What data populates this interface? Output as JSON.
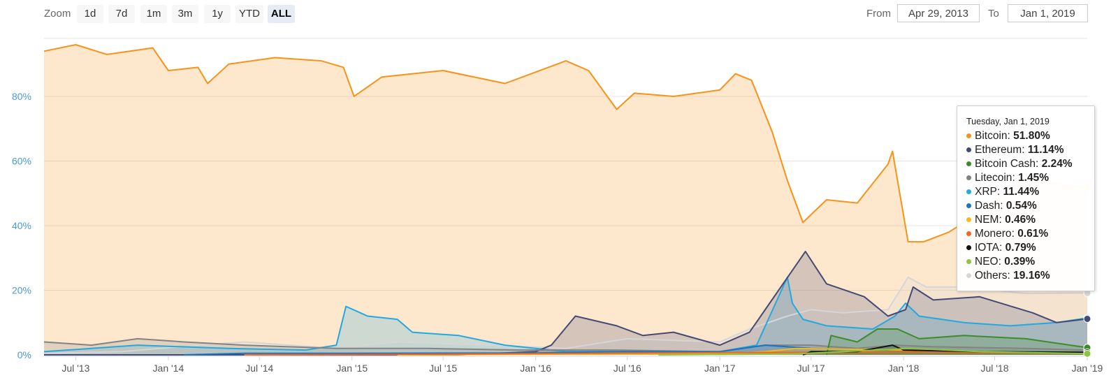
{
  "toolbar": {
    "zoom_label": "Zoom",
    "buttons": [
      {
        "label": "1d",
        "active": false
      },
      {
        "label": "7d",
        "active": false
      },
      {
        "label": "1m",
        "active": false
      },
      {
        "label": "3m",
        "active": false
      },
      {
        "label": "1y",
        "active": false
      },
      {
        "label": "YTD",
        "active": false
      },
      {
        "label": "ALL",
        "active": true
      }
    ],
    "from_label": "From",
    "from_value": "Apr 29, 2013",
    "to_label": "To",
    "to_value": "Jan 1, 2019"
  },
  "tooltip": {
    "date": "Tuesday, Jan 1, 2019",
    "rows": [
      {
        "name": "Bitcoin",
        "value": "51.80%",
        "color": "#f7931a"
      },
      {
        "name": "Ethereum",
        "value": "11.14%",
        "color": "#454a75"
      },
      {
        "name": "Bitcoin Cash",
        "value": "2.24%",
        "color": "#3c8c2a"
      },
      {
        "name": "Litecoin",
        "value": "1.45%",
        "color": "#838383"
      },
      {
        "name": "XRP",
        "value": "11.44%",
        "color": "#23a8e0"
      },
      {
        "name": "Dash",
        "value": "0.54%",
        "color": "#1c75bc"
      },
      {
        "name": "NEM",
        "value": "0.46%",
        "color": "#f5b921"
      },
      {
        "name": "Monero",
        "value": "0.61%",
        "color": "#f26822"
      },
      {
        "name": "IOTA",
        "value": "0.79%",
        "color": "#111111"
      },
      {
        "name": "NEO",
        "value": "0.39%",
        "color": "#8cc63f"
      },
      {
        "name": "Others",
        "value": "19.16%",
        "color": "#d6d6d6"
      }
    ]
  },
  "chart_data": {
    "type": "area",
    "xlabel": "",
    "ylabel": "",
    "x_range": [
      "2013-04-29",
      "2019-01-01"
    ],
    "ylim": [
      0,
      100
    ],
    "y_ticks": [
      0,
      20,
      40,
      60,
      80
    ],
    "y_tick_labels": [
      "0%",
      "20%",
      "40%",
      "60%",
      "80%"
    ],
    "x_ticks": [
      {
        "date": "2013-07-01",
        "label": "Jul '13"
      },
      {
        "date": "2014-01-01",
        "label": "Jan '14"
      },
      {
        "date": "2014-07-01",
        "label": "Jul '14"
      },
      {
        "date": "2015-01-01",
        "label": "Jan '15"
      },
      {
        "date": "2015-07-01",
        "label": "Jul '15"
      },
      {
        "date": "2016-01-01",
        "label": "Jan '16"
      },
      {
        "date": "2016-07-01",
        "label": "Jul '16"
      },
      {
        "date": "2017-01-01",
        "label": "Jan '17"
      },
      {
        "date": "2017-07-01",
        "label": "Jul '17"
      },
      {
        "date": "2018-01-01",
        "label": "Jan '18"
      },
      {
        "date": "2018-07-01",
        "label": "Jul '18"
      },
      {
        "date": "2019-01-01",
        "label": "Jan '19"
      }
    ],
    "grid": true,
    "legend": "none",
    "series": [
      {
        "name": "Others",
        "color": "#d6d6d6",
        "x": [
          "2013-04-29",
          "2013-10-01",
          "2014-03-01",
          "2014-06-01",
          "2014-12-01",
          "2015-04-01",
          "2015-10-01",
          "2016-03-01",
          "2016-07-01",
          "2017-01-01",
          "2017-03-01",
          "2017-05-15",
          "2017-07-01",
          "2017-09-01",
          "2017-12-01",
          "2018-01-10",
          "2018-02-15",
          "2018-05-01",
          "2018-09-01",
          "2019-01-01"
        ],
        "y": [
          0.5,
          1,
          3,
          4,
          2,
          4,
          3,
          2,
          5,
          4,
          8,
          12,
          14,
          13,
          14,
          24,
          21,
          21,
          19,
          19.16
        ]
      },
      {
        "name": "XRP",
        "color": "#23a8e0",
        "x": [
          "2013-04-29",
          "2013-08-01",
          "2013-11-01",
          "2014-05-01",
          "2014-10-01",
          "2014-12-01",
          "2014-12-20",
          "2015-02-01",
          "2015-04-01",
          "2015-05-01",
          "2015-08-01",
          "2015-11-01",
          "2016-03-01",
          "2016-08-01",
          "2017-01-01",
          "2017-03-15",
          "2017-05-15",
          "2017-05-25",
          "2017-06-15",
          "2017-08-01",
          "2017-11-01",
          "2017-12-15",
          "2018-01-05",
          "2018-02-01",
          "2018-05-01",
          "2018-08-01",
          "2018-11-01",
          "2019-01-01"
        ],
        "y": [
          1,
          2,
          3,
          2,
          1.5,
          3,
          15,
          12,
          11,
          7,
          6,
          3,
          1,
          1,
          1,
          3,
          24,
          16,
          11,
          9,
          8,
          12,
          16,
          12,
          10,
          9,
          10,
          11.44
        ]
      },
      {
        "name": "Ethereum",
        "color": "#454a75",
        "x": [
          "2013-04-29",
          "2015-08-01",
          "2016-01-01",
          "2016-02-01",
          "2016-03-20",
          "2016-06-10",
          "2016-08-01",
          "2016-10-01",
          "2017-01-01",
          "2017-03-01",
          "2017-04-10",
          "2017-06-20",
          "2017-08-01",
          "2017-10-15",
          "2017-12-01",
          "2018-01-05",
          "2018-01-20",
          "2018-03-01",
          "2018-06-01",
          "2018-09-15",
          "2018-11-01",
          "2019-01-01"
        ],
        "y": [
          0,
          0,
          1,
          3,
          12,
          9,
          6,
          7,
          3,
          7,
          16,
          32,
          22,
          18,
          12,
          14,
          21,
          17,
          18,
          13,
          10,
          11.14
        ]
      },
      {
        "name": "Litecoin",
        "color": "#838383",
        "x": [
          "2013-04-29",
          "2013-08-01",
          "2013-11-01",
          "2014-02-01",
          "2014-06-01",
          "2014-12-01",
          "2015-06-01",
          "2015-12-01",
          "2016-06-01",
          "2017-01-01",
          "2017-04-01",
          "2017-07-01",
          "2017-10-01",
          "2017-12-15",
          "2018-03-01",
          "2018-09-01",
          "2019-01-01"
        ],
        "y": [
          4,
          3,
          5,
          4,
          3,
          2,
          2,
          1.5,
          1.5,
          1,
          3,
          3,
          2,
          3,
          2.5,
          2,
          1.45
        ]
      },
      {
        "name": "Bitcoin Cash",
        "color": "#3c8c2a",
        "x": [
          "2017-08-01",
          "2017-08-10",
          "2017-10-01",
          "2017-11-10",
          "2017-12-20",
          "2018-02-01",
          "2018-05-01",
          "2018-09-01",
          "2019-01-01"
        ],
        "y": [
          0,
          6,
          4,
          8,
          8,
          5,
          6,
          5,
          2.24
        ]
      },
      {
        "name": "Dash",
        "color": "#1c75bc",
        "x": [
          "2014-02-01",
          "2014-06-01",
          "2015-01-01",
          "2016-01-01",
          "2016-06-01",
          "2017-01-01",
          "2017-04-01",
          "2017-07-01",
          "2017-12-01",
          "2018-06-01",
          "2019-01-01"
        ],
        "y": [
          0,
          0.5,
          0.5,
          0.6,
          1,
          1,
          3,
          2,
          1.5,
          1,
          0.54
        ]
      },
      {
        "name": "NEM",
        "color": "#f5b921",
        "x": [
          "2015-04-01",
          "2016-06-01",
          "2017-01-01",
          "2017-04-01",
          "2017-06-01",
          "2018-01-01",
          "2018-06-01",
          "2019-01-01"
        ],
        "y": [
          0,
          0.2,
          0.3,
          1,
          2,
          1.5,
          1,
          0.46
        ]
      },
      {
        "name": "Monero",
        "color": "#f26822",
        "x": [
          "2014-06-01",
          "2015-06-01",
          "2016-06-01",
          "2017-01-01",
          "2017-08-01",
          "2018-01-01",
          "2018-06-01",
          "2019-01-01"
        ],
        "y": [
          0,
          0.2,
          0.5,
          0.7,
          0.8,
          1,
          0.8,
          0.61
        ]
      },
      {
        "name": "IOTA",
        "color": "#111111",
        "x": [
          "2017-06-15",
          "2017-07-01",
          "2017-10-01",
          "2017-12-10",
          "2018-01-01",
          "2018-06-01",
          "2019-01-01"
        ],
        "y": [
          0,
          1,
          1,
          3,
          1.5,
          1,
          0.79
        ]
      },
      {
        "name": "NEO",
        "color": "#8cc63f",
        "x": [
          "2016-09-01",
          "2017-06-01",
          "2017-09-01",
          "2018-01-15",
          "2018-06-01",
          "2019-01-01"
        ],
        "y": [
          0,
          0.3,
          1,
          2,
          1,
          0.39
        ]
      },
      {
        "name": "Bitcoin",
        "color": "#f7931a",
        "x": [
          "2013-04-29",
          "2013-07-01",
          "2013-09-01",
          "2013-12-01",
          "2014-01-01",
          "2014-03-01",
          "2014-03-20",
          "2014-05-01",
          "2014-08-01",
          "2014-11-01",
          "2014-12-15",
          "2015-01-05",
          "2015-03-01",
          "2015-07-01",
          "2015-11-01",
          "2016-03-01",
          "2016-04-15",
          "2016-06-10",
          "2016-07-15",
          "2016-10-01",
          "2017-01-01",
          "2017-02-01",
          "2017-03-05",
          "2017-04-15",
          "2017-05-15",
          "2017-06-15",
          "2017-08-01",
          "2017-10-01",
          "2017-12-01",
          "2017-12-10",
          "2018-01-10",
          "2018-02-10",
          "2018-04-01",
          "2018-06-01",
          "2018-09-01",
          "2019-01-01"
        ],
        "y": [
          94,
          96,
          93,
          95,
          88,
          89,
          84,
          90,
          92,
          91,
          89,
          80,
          86,
          88,
          84,
          91,
          88,
          76,
          81,
          80,
          82,
          87,
          85,
          69,
          54,
          41,
          48,
          47,
          59,
          63,
          35,
          35,
          38,
          44,
          54,
          51.8
        ]
      }
    ]
  }
}
